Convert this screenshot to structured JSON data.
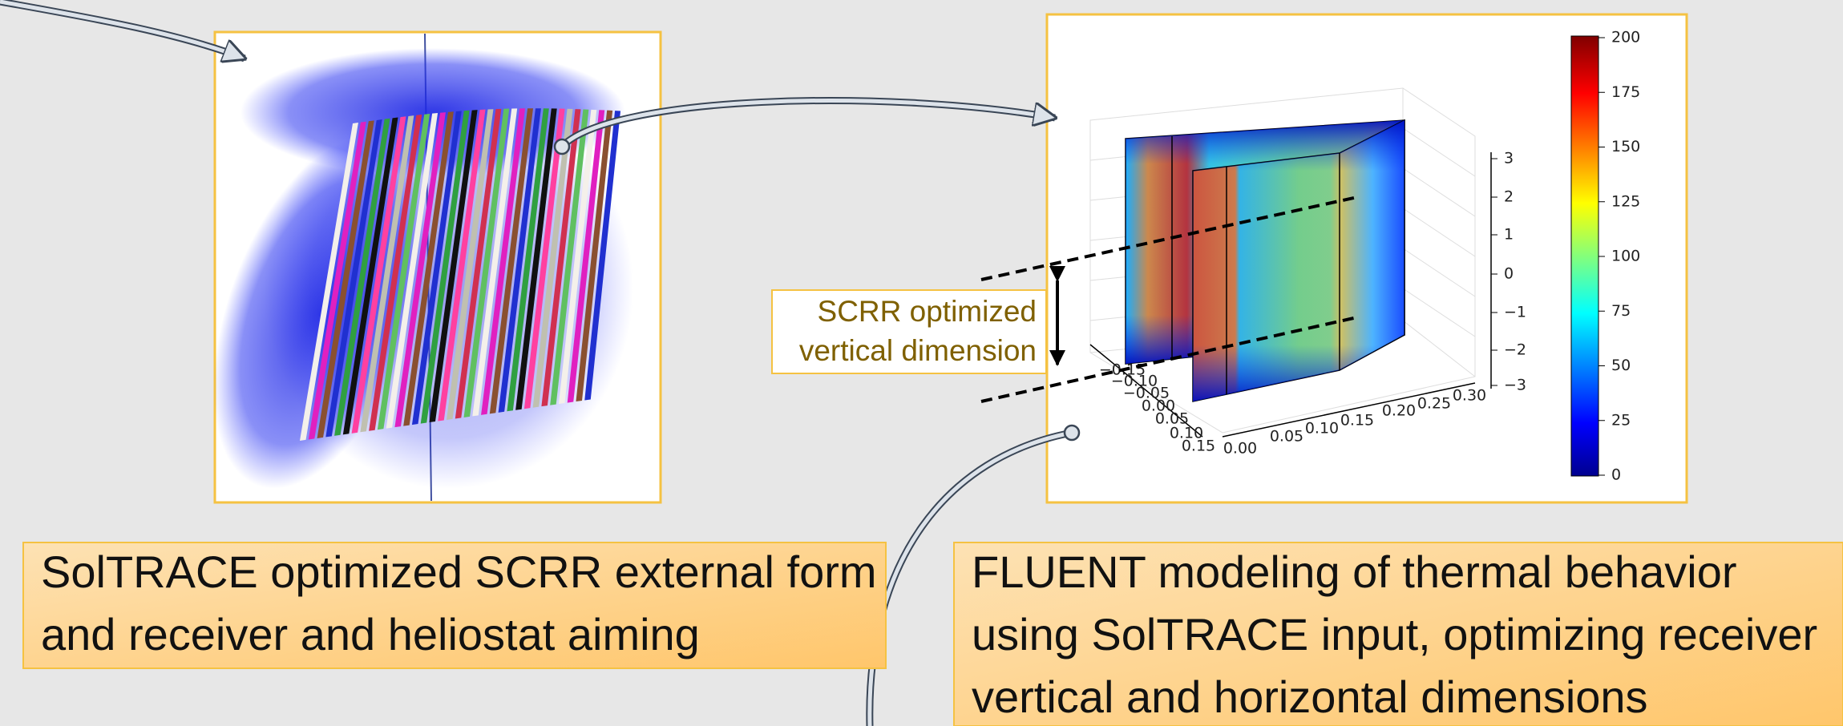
{
  "left_caption": {
    "lines": [
      "SolTRACE optimized SCRR external form",
      "and receiver and heliostat aiming"
    ]
  },
  "right_caption": {
    "lines": [
      "FLUENT modeling of thermal behavior",
      "using SolTRACE input, optimizing receiver",
      "vertical and horizontal dimensions"
    ]
  },
  "dimension_label": {
    "lines": [
      "SCRR optimized",
      "vertical dimension"
    ]
  },
  "plot": {
    "z_ticks": [
      "3",
      "2",
      "1",
      "0",
      "−1",
      "−2",
      "−3"
    ],
    "x_ticks": [
      "0.00",
      "0.05",
      "0.10",
      "0.15",
      "0.20",
      "0.25",
      "0.30"
    ],
    "y_ticks": [
      "−0.15",
      "−0.10",
      "−0.05",
      "0.00",
      "0.05",
      "0.10",
      "0.15"
    ],
    "colorbar": {
      "range": [
        0,
        200
      ],
      "ticks": [
        0,
        25,
        50,
        75,
        100,
        125,
        150,
        175,
        200
      ]
    }
  }
}
